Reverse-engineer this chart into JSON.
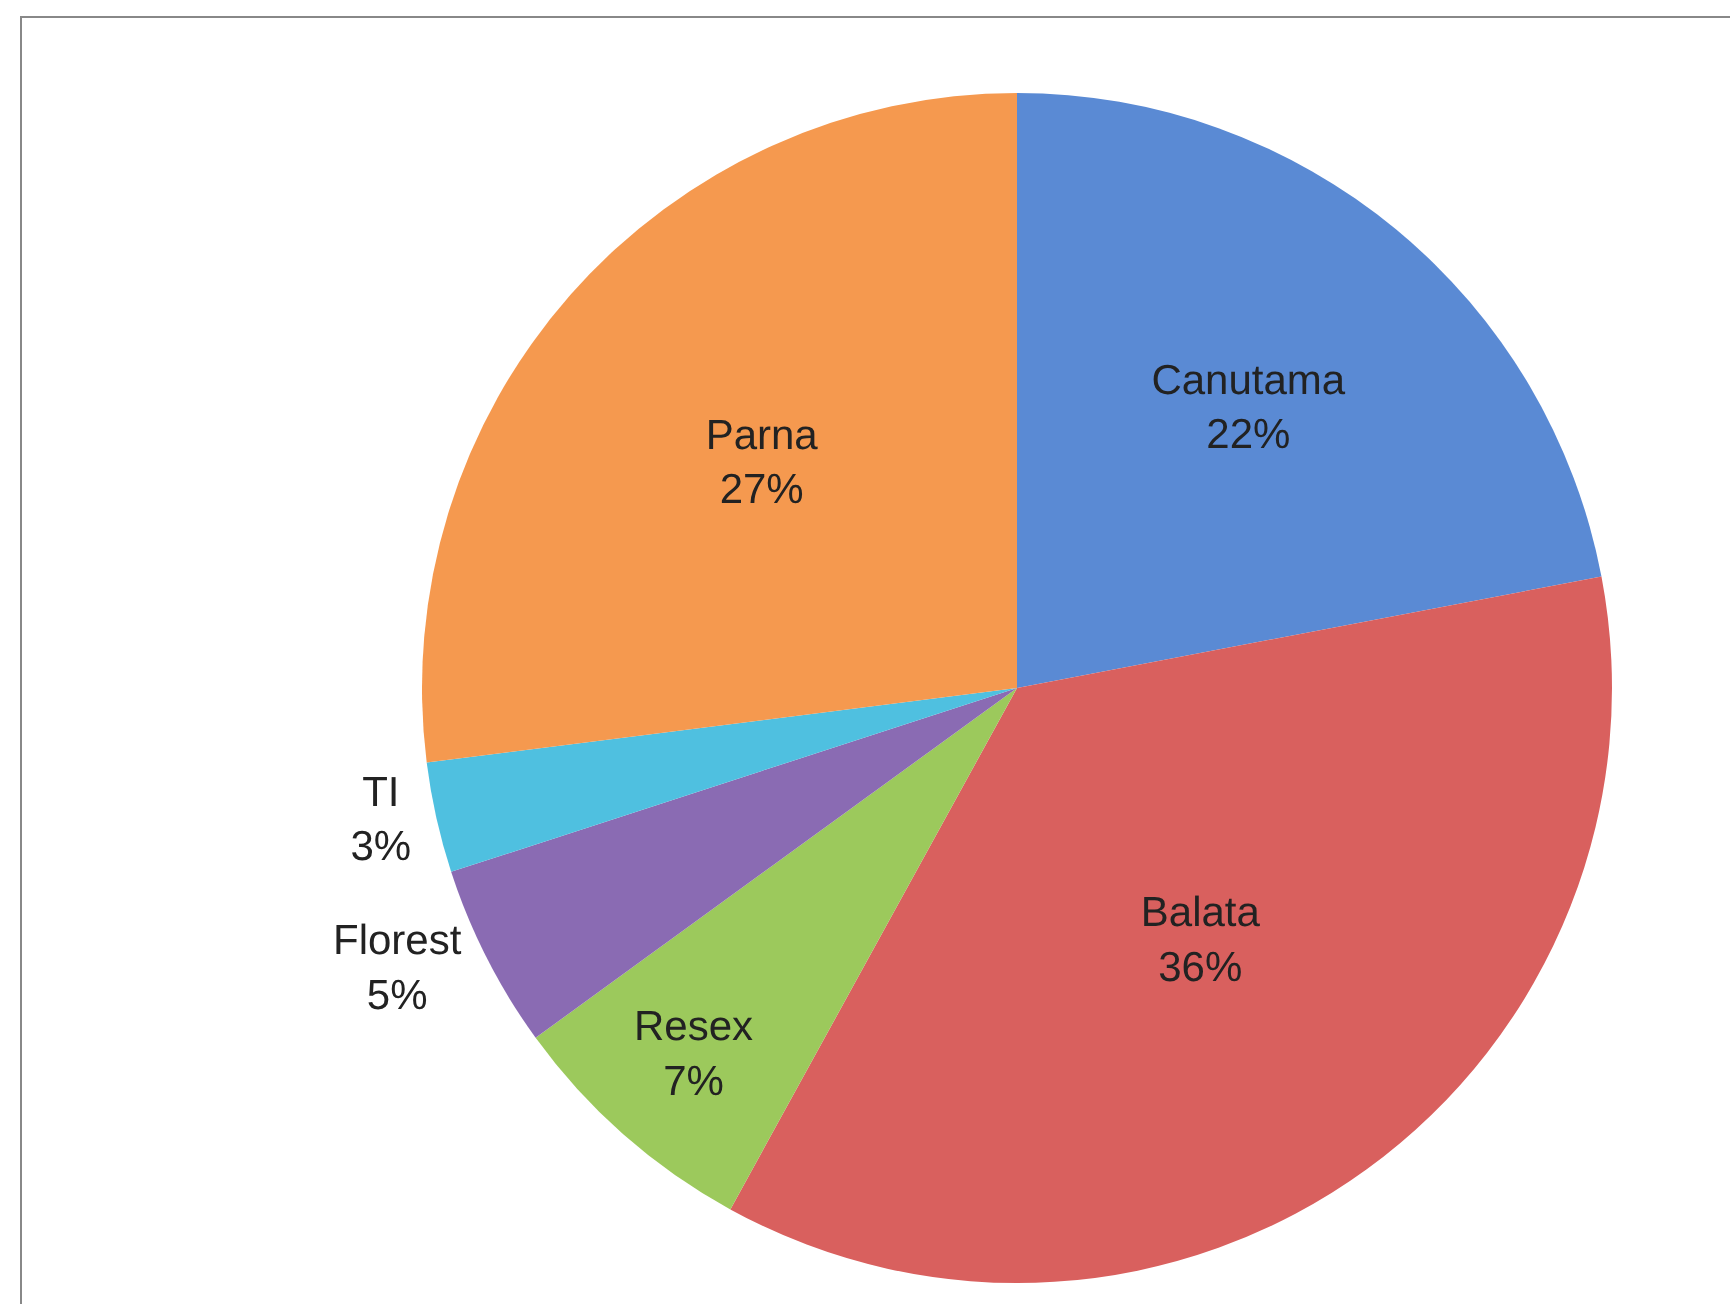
{
  "chart_data": {
    "type": "pie",
    "categories": [
      "Canutama",
      "Balata",
      "Resex",
      "Florest",
      "TI",
      "Parna"
    ],
    "values": [
      22,
      36,
      7,
      5,
      3,
      27
    ],
    "value_labels": [
      "22%",
      "36%",
      "7%",
      "5%",
      "3%",
      "27%"
    ],
    "colors": [
      "#5a8ad4",
      "#d9605e",
      "#9cc95c",
      "#8a6bb3",
      "#4fc0e0",
      "#f5994f"
    ],
    "legend": false
  }
}
